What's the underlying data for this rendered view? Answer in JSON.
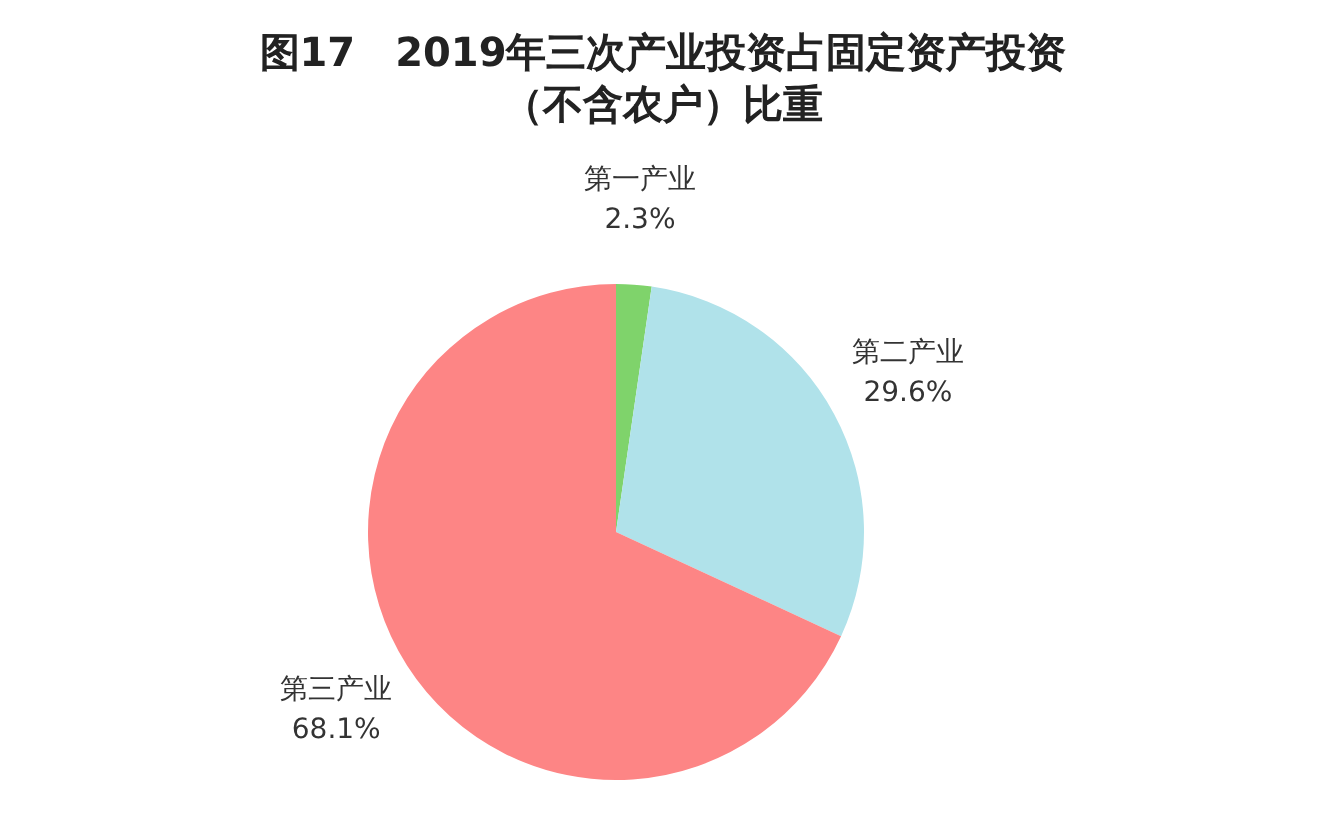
{
  "chart_data": {
    "type": "pie",
    "title": "图17　2019年三次产业投资占固定资产投资（不含农户）比重",
    "categories": [
      "第一产业",
      "第二产业",
      "第三产业"
    ],
    "values": [
      2.3,
      29.6,
      68.1
    ],
    "colors": [
      "#7fd36b",
      "#b0e2ea",
      "#fd8585"
    ],
    "value_labels": [
      "2.3%",
      "29.6%",
      "68.1%"
    ],
    "legend": false
  }
}
